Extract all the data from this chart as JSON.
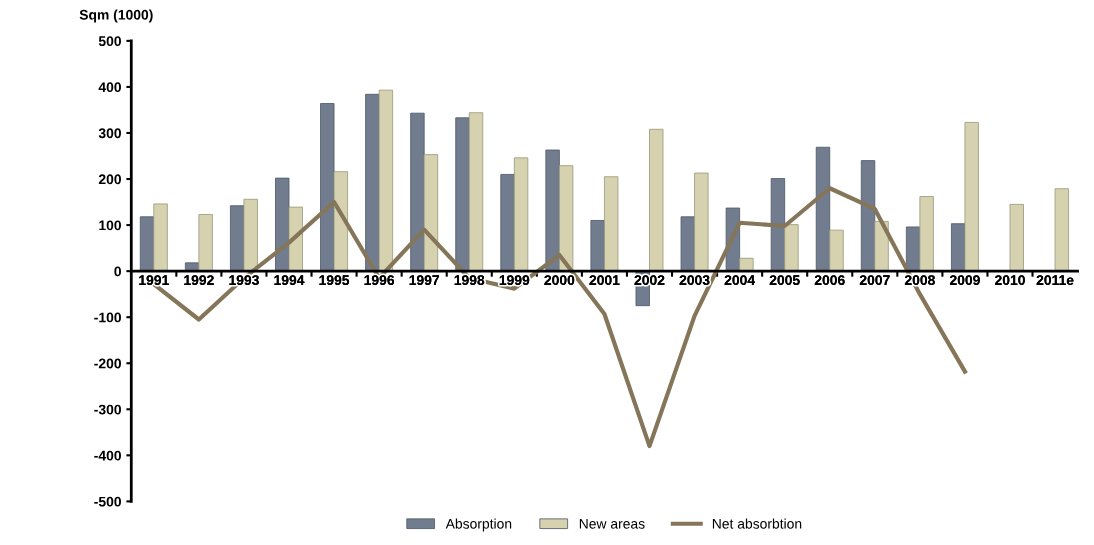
{
  "chart_data": {
    "type": "bar",
    "ylabel": "Sqm (1000)",
    "categories": [
      "1991",
      "1992",
      "1993",
      "1994",
      "1995",
      "1996",
      "1997",
      "1998",
      "1999",
      "2000",
      "2001",
      "2002",
      "2003",
      "2004",
      "2005",
      "2006",
      "2007",
      "2008",
      "2009",
      "2010",
      "2011e"
    ],
    "series": [
      {
        "name": "Absorption",
        "color": "#717d8f",
        "values": [
          118,
          18,
          142,
          202,
          364,
          384,
          343,
          333,
          210,
          263,
          110,
          -75,
          118,
          137,
          201,
          269,
          240,
          96,
          103,
          null,
          null
        ]
      },
      {
        "name": "New areas",
        "color": "#d6d2b0",
        "values": [
          146,
          123,
          156,
          139,
          216,
          393,
          253,
          344,
          246,
          229,
          205,
          308,
          213,
          28,
          101,
          89,
          108,
          162,
          323,
          145,
          179
        ]
      },
      {
        "name": "Net absorbtion",
        "type": "line",
        "color": "#857559",
        "values": [
          -28,
          -105,
          -15,
          62,
          150,
          -15,
          90,
          -15,
          -38,
          35,
          -93,
          -380,
          -97,
          105,
          98,
          180,
          135,
          -50,
          -218,
          null,
          null
        ]
      }
    ],
    "ylim": [
      -500,
      500
    ],
    "yticks": [
      -500,
      -400,
      -300,
      -200,
      -100,
      0,
      100,
      200,
      300,
      400,
      500
    ],
    "grid": false,
    "legend": "bottom",
    "marker": "none",
    "line_style": "solid"
  }
}
